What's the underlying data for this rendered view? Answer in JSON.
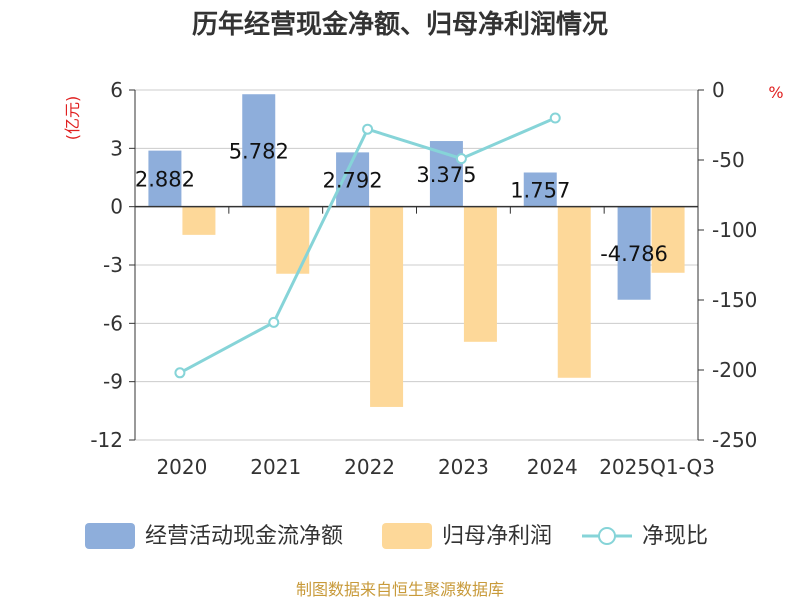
{
  "chart_data": {
    "type": "bar+line",
    "title": "历年经营现金净额、归母净利润情况",
    "categories": [
      "2020",
      "2021",
      "2022",
      "2023",
      "2024",
      "2025Q1-Q3"
    ],
    "series": [
      {
        "name": "经营活动现金流净额",
        "type": "bar",
        "axis": "left",
        "color": "#8eaedb",
        "values": [
          2.882,
          5.782,
          2.792,
          3.375,
          1.757,
          -4.786
        ],
        "labels": [
          "2.882",
          "5.782",
          "2.792",
          "3.375",
          "1.757",
          "-4.786"
        ]
      },
      {
        "name": "归母净利润",
        "type": "bar",
        "axis": "left",
        "color": "#fdd899",
        "values": [
          -1.45,
          -3.45,
          -10.3,
          -6.95,
          -8.8,
          -3.4
        ]
      },
      {
        "name": "净现比",
        "type": "line",
        "axis": "right",
        "color": "#86d4d8",
        "values": [
          -202,
          -166,
          -28,
          -49,
          -20,
          null
        ]
      }
    ],
    "left_axis": {
      "unit": "(亿元)",
      "min": -12,
      "max": 6,
      "ticks": [
        6,
        3,
        0,
        -3,
        -6,
        -9,
        -12
      ],
      "tick_labels": [
        "6",
        "3",
        "0",
        "-3",
        "-6",
        "-9",
        "-12"
      ]
    },
    "right_axis": {
      "unit": "%",
      "min": -250,
      "max": 0,
      "ticks": [
        0,
        -50,
        -100,
        -150,
        -200,
        -250
      ],
      "tick_labels": [
        "0",
        "-50",
        "-100",
        "-150",
        "-200",
        "-250"
      ]
    },
    "legend_position": "bottom",
    "grid": true
  },
  "footer": {
    "source": "制图数据来自恒生聚源数据库"
  }
}
